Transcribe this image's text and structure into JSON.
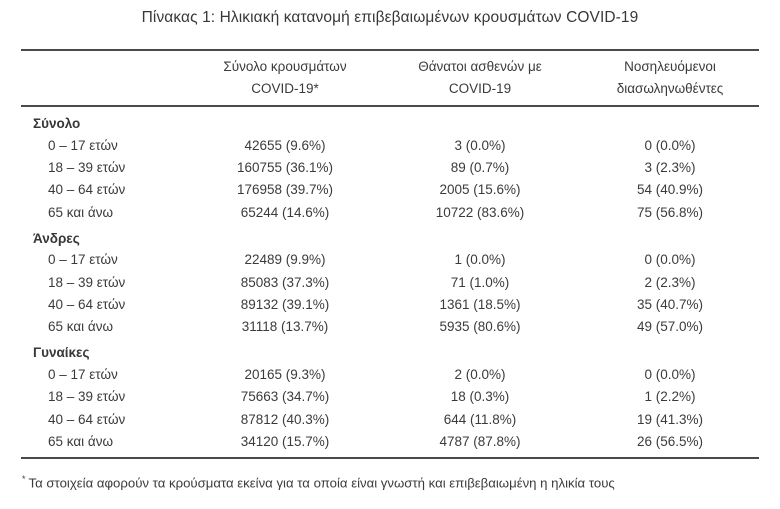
{
  "title": "Πίνακας 1: Ηλικιακή κατανομή επιβεβαιωμένων κρουσμάτων COVID-19",
  "colors": {
    "text": "#3b3b3b",
    "rule": "#4a4a4a",
    "background": "#ffffff"
  },
  "table": {
    "columns": [
      {
        "line1": "Σύνολο κρουσμάτων",
        "line2": "COVID-19*"
      },
      {
        "line1": "Θάνατοι ασθενών με",
        "line2": "COVID-19"
      },
      {
        "line1": "Νοσηλευόμενοι",
        "line2": "διασωληνωθέντες"
      }
    ],
    "sections": [
      {
        "label": "Σύνολο",
        "rows": [
          {
            "age": "0 – 17 ετών",
            "cases": "42655 (9.6%)",
            "deaths": "3 (0.0%)",
            "intubated": "0 (0.0%)"
          },
          {
            "age": "18 – 39 ετών",
            "cases": "160755 (36.1%)",
            "deaths": "89 (0.7%)",
            "intubated": "3 (2.3%)"
          },
          {
            "age": "40 – 64 ετών",
            "cases": "176958 (39.7%)",
            "deaths": "2005 (15.6%)",
            "intubated": "54 (40.9%)"
          },
          {
            "age": "65 και άνω",
            "cases": "65244 (14.6%)",
            "deaths": "10722 (83.6%)",
            "intubated": "75 (56.8%)"
          }
        ]
      },
      {
        "label": "Άνδρες",
        "rows": [
          {
            "age": "0 – 17 ετών",
            "cases": "22489 (9.9%)",
            "deaths": "1 (0.0%)",
            "intubated": "0 (0.0%)"
          },
          {
            "age": "18 – 39 ετών",
            "cases": "85083 (37.3%)",
            "deaths": "71 (1.0%)",
            "intubated": "2 (2.3%)"
          },
          {
            "age": "40 – 64 ετών",
            "cases": "89132 (39.1%)",
            "deaths": "1361 (18.5%)",
            "intubated": "35 (40.7%)"
          },
          {
            "age": "65 και άνω",
            "cases": "31118 (13.7%)",
            "deaths": "5935 (80.6%)",
            "intubated": "49 (57.0%)"
          }
        ]
      },
      {
        "label": "Γυναίκες",
        "rows": [
          {
            "age": "0 – 17 ετών",
            "cases": "20165 (9.3%)",
            "deaths": "2 (0.0%)",
            "intubated": "0 (0.0%)"
          },
          {
            "age": "18 – 39 ετών",
            "cases": "75663 (34.7%)",
            "deaths": "18 (0.3%)",
            "intubated": "1 (2.2%)"
          },
          {
            "age": "40 – 64 ετών",
            "cases": "87812 (40.3%)",
            "deaths": "644 (11.8%)",
            "intubated": "19 (41.3%)"
          },
          {
            "age": "65 και άνω",
            "cases": "34120 (15.7%)",
            "deaths": "4787 (87.8%)",
            "intubated": "26 (56.5%)"
          }
        ]
      }
    ],
    "footnote_marker": "*",
    "footnote": "Τα στοιχεία αφορούν τα κρούσματα εκείνα για τα οποία είναι γνωστή και επιβεβαιωμένη η ηλικία τους"
  }
}
